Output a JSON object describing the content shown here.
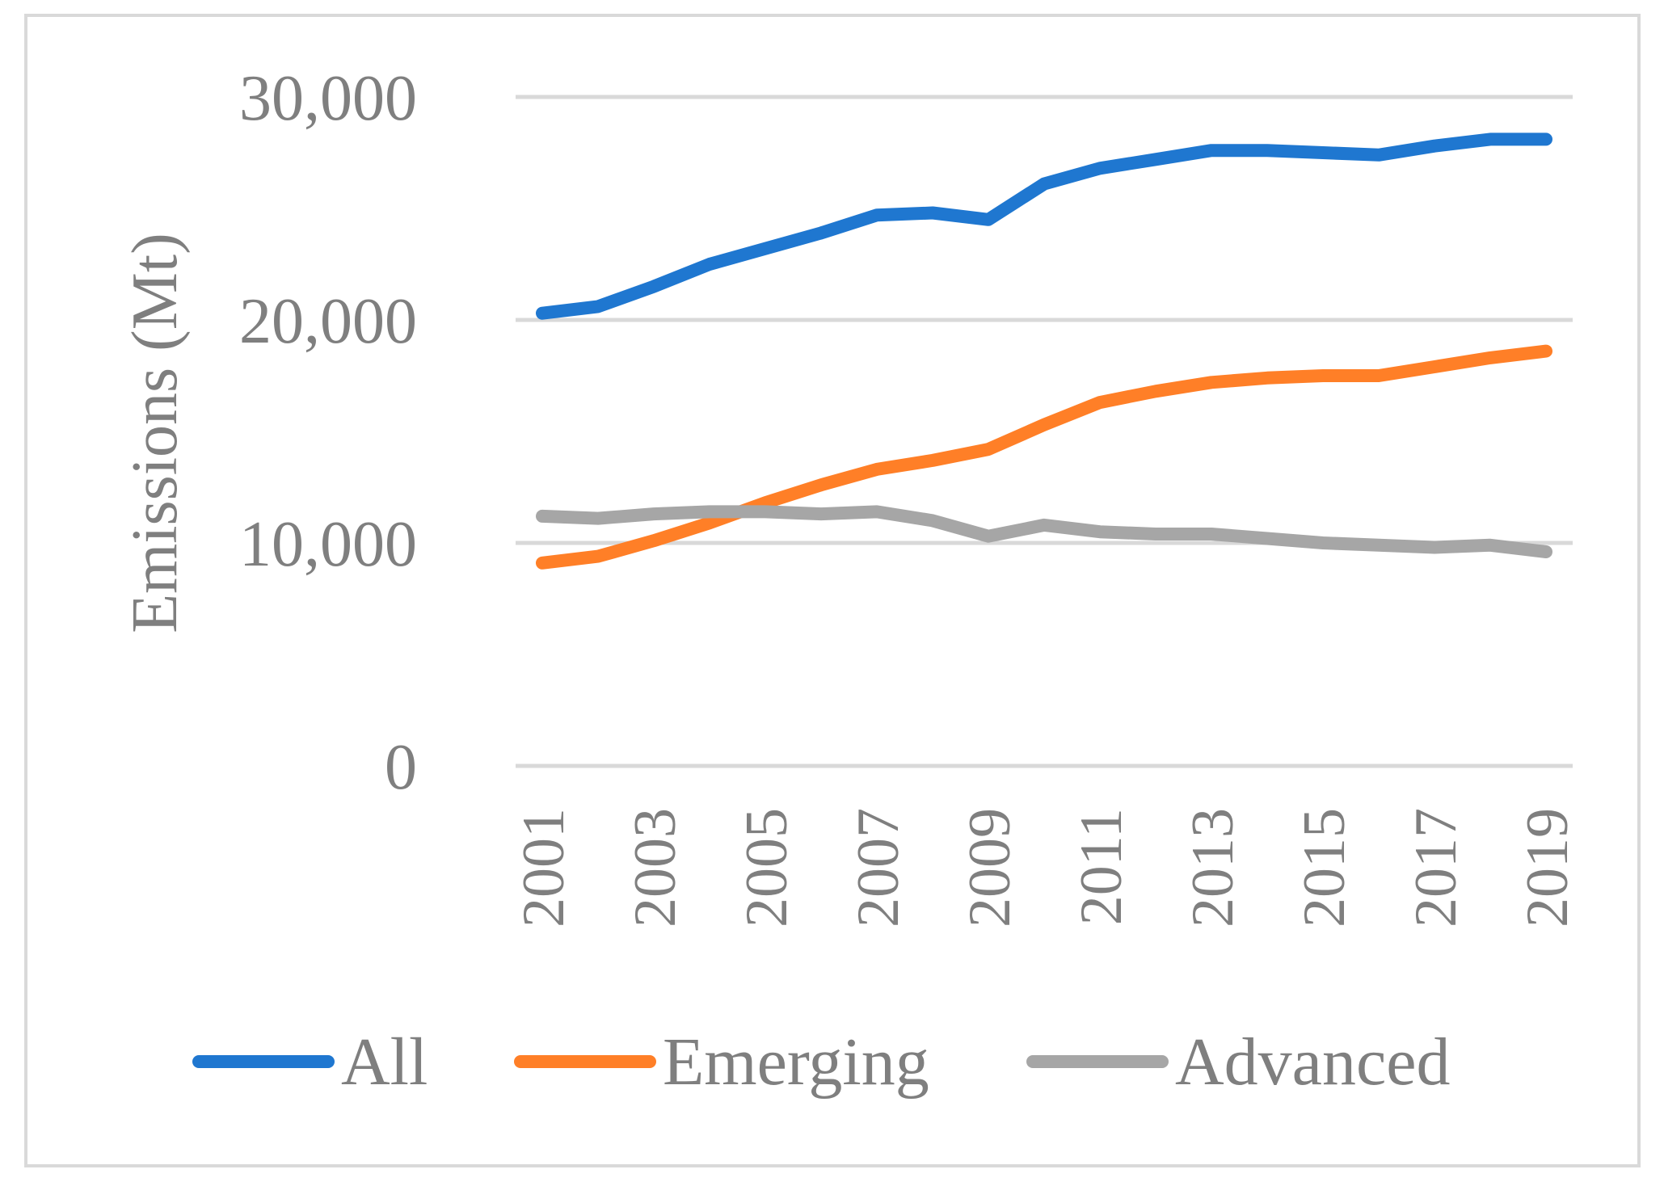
{
  "chart_data": {
    "type": "line",
    "title": "",
    "xlabel": "",
    "ylabel": "Emissions  (Mt)",
    "ylim": [
      0,
      30000
    ],
    "yticks": [
      0,
      10000,
      20000,
      30000
    ],
    "ytick_labels": [
      "0",
      "10,000",
      "20,000",
      "30,000"
    ],
    "x": [
      2001,
      2002,
      2003,
      2004,
      2005,
      2006,
      2007,
      2008,
      2009,
      2010,
      2011,
      2012,
      2013,
      2014,
      2015,
      2016,
      2017,
      2018,
      2019
    ],
    "xtick_labels": [
      "2001",
      "2003",
      "2005",
      "2007",
      "2009",
      "2011",
      "2013",
      "2015",
      "2017",
      "2019"
    ],
    "grid": true,
    "legend_position": "bottom",
    "series": [
      {
        "name": "All",
        "color": "#1f77d0",
        "values": [
          20300,
          20600,
          21500,
          22500,
          23200,
          23900,
          24700,
          24800,
          24500,
          26100,
          26800,
          27200,
          27600,
          27600,
          27500,
          27400,
          27800,
          28100,
          28100
        ]
      },
      {
        "name": "Emerging",
        "color": "#ff7f27",
        "values": [
          9100,
          9400,
          10100,
          10900,
          11800,
          12600,
          13300,
          13700,
          14200,
          15300,
          16300,
          16800,
          17200,
          17400,
          17500,
          17500,
          17900,
          18300,
          18600
        ]
      },
      {
        "name": "Advanced",
        "color": "#a6a6a6",
        "values": [
          11200,
          11100,
          11300,
          11400,
          11400,
          11300,
          11400,
          11000,
          10300,
          10800,
          10500,
          10400,
          10400,
          10200,
          10000,
          9900,
          9800,
          9900,
          9600
        ]
      }
    ]
  }
}
